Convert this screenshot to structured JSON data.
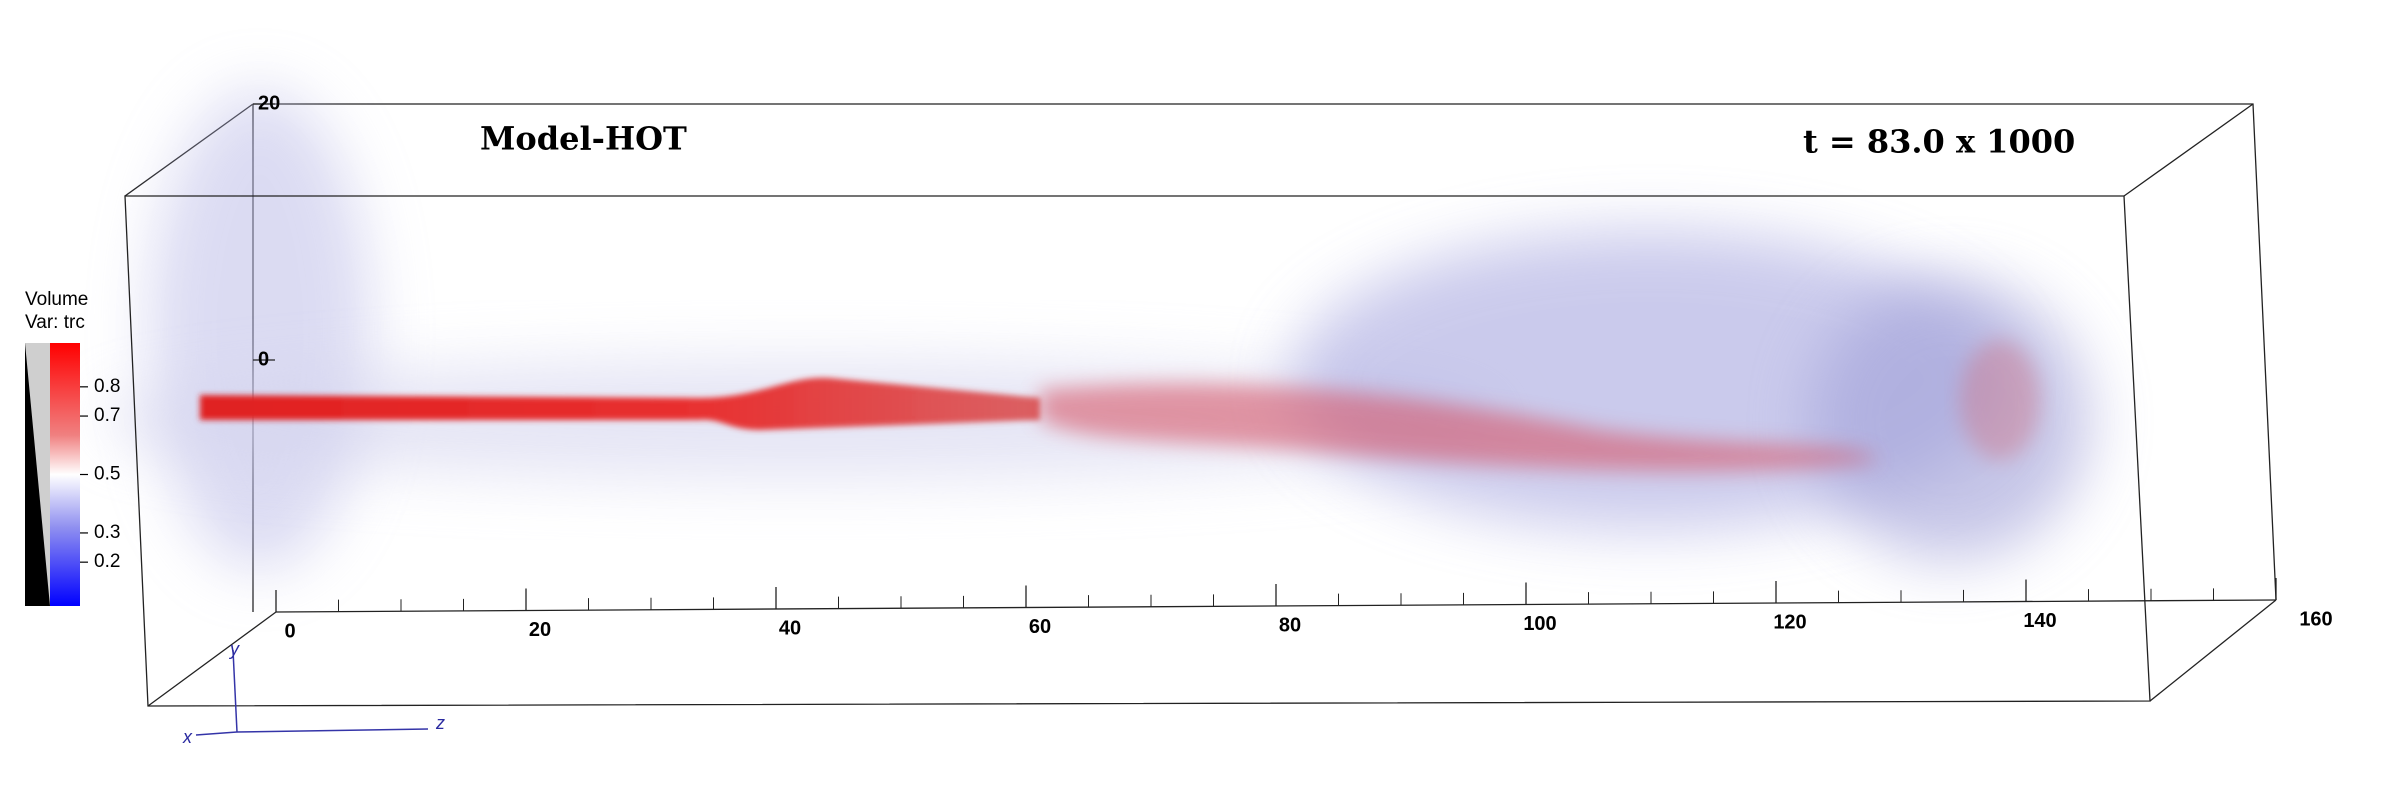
{
  "title": "Model-HOT",
  "time_label": "t = 83.0 x 1000",
  "legend": {
    "title": "Volume",
    "variable": "Var: trc",
    "ticks": [
      0.8,
      0.7,
      0.5,
      0.3,
      0.2
    ]
  },
  "z_axis": {
    "ticks": [
      0,
      20,
      40,
      60,
      80,
      100,
      120,
      140,
      160
    ]
  },
  "y_axis": {
    "ticks": [
      20,
      0
    ]
  },
  "triad": {
    "x": "x",
    "y": "y",
    "z": "z"
  }
}
